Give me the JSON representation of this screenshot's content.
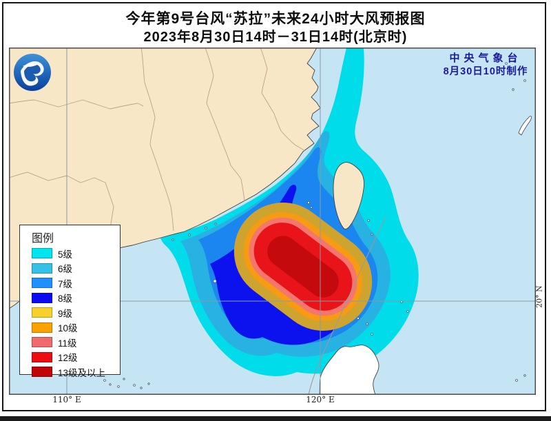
{
  "header": {
    "title": "今年第9号台风“苏拉”未来24小时大风预报图",
    "subtitle": "2023年8月30日14时－31日14时(北京时)"
  },
  "credit": {
    "agency": "中央气象台",
    "made": "8月30日10时制作",
    "color": "#1a1aa0"
  },
  "legend": {
    "title": "图例",
    "items": [
      {
        "label": "5级",
        "color": "#00e6f0"
      },
      {
        "label": "6级",
        "color": "#33c1e8"
      },
      {
        "label": "7级",
        "color": "#1e90ff"
      },
      {
        "label": "8级",
        "color": "#0a0af5"
      },
      {
        "label": "9级",
        "color": "#f8d02a"
      },
      {
        "label": "10级",
        "color": "#fba201"
      },
      {
        "label": "11级",
        "color": "#f16a6c"
      },
      {
        "label": "12级",
        "color": "#ec0d10"
      },
      {
        "label": "13级及以上",
        "color": "#c10407"
      }
    ]
  },
  "axes": {
    "lon_left": "110° E",
    "lon_right": "120° E",
    "lat_right": "20° N"
  },
  "map_colors": {
    "sea": "#c6e5f4",
    "land": "#f8e7c6",
    "foreign_land": "#ffffff",
    "province_border": "#bda183",
    "coastline": "#3f3f3f",
    "gridline": "#8a9aa8",
    "wind": {
      "w5": "#00dcea",
      "w6": "#27b2e3",
      "w7": "#1b86f0",
      "w8": "#0b12ee",
      "w9": "#cfa42e",
      "w10": "#f79b13",
      "w11": "#f4766d",
      "w12": "#e8141a",
      "w13": "#c40a0c"
    }
  }
}
